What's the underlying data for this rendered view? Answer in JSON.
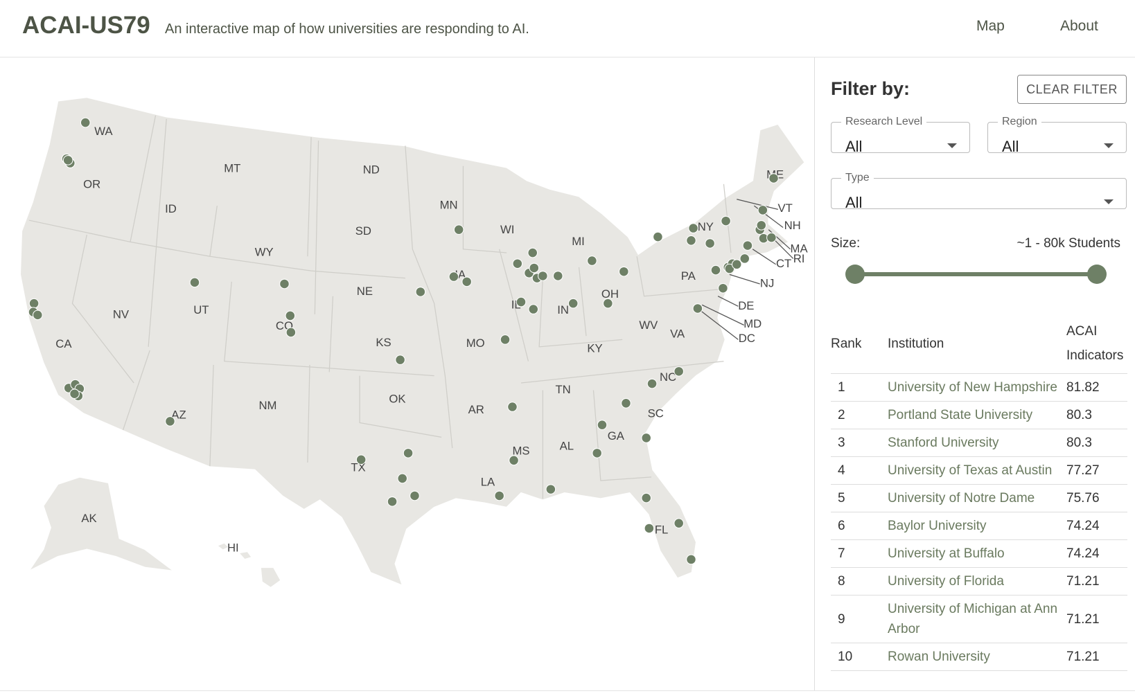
{
  "header": {
    "title": "ACAI-US79",
    "subtitle": "An interactive map of how universities are responding to AI.",
    "nav": [
      "Map",
      "About"
    ]
  },
  "map": {
    "state_labels": [
      "WA",
      "OR",
      "CA",
      "NV",
      "ID",
      "MT",
      "WY",
      "UT",
      "CO",
      "AZ",
      "NM",
      "ND",
      "SD",
      "NE",
      "KS",
      "OK",
      "TX",
      "MN",
      "IA",
      "MO",
      "AR",
      "LA",
      "WI",
      "IL",
      "MS",
      "MI",
      "IN",
      "KY",
      "TN",
      "AL",
      "OH",
      "GA",
      "FL",
      "SC",
      "NC",
      "VA",
      "WV",
      "PA",
      "NY",
      "ME",
      "VT",
      "NH",
      "MA",
      "RI",
      "CT",
      "NJ",
      "DE",
      "MD",
      "DC",
      "AK",
      "HI"
    ]
  },
  "filter": {
    "title": "Filter by:",
    "clear_button": "CLEAR FILTER",
    "selects": [
      {
        "label": "Research Level",
        "value": "All"
      },
      {
        "label": "Region",
        "value": "All"
      },
      {
        "label": "Type",
        "value": "All"
      }
    ],
    "size_label": "Size:",
    "size_range": "~1 - 80k Students"
  },
  "table": {
    "columns": [
      "Rank",
      "Institution",
      "ACAI Indicators"
    ],
    "rows": [
      [
        1,
        "University of New Hampshire",
        81.82
      ],
      [
        2,
        "Portland State University",
        80.3
      ],
      [
        3,
        "Stanford University",
        80.3
      ],
      [
        4,
        "University of Texas at Austin",
        77.27
      ],
      [
        5,
        "University of Notre Dame",
        75.76
      ],
      [
        6,
        "Baylor University",
        74.24
      ],
      [
        7,
        "University at Buffalo",
        74.24
      ],
      [
        8,
        "University of Florida",
        71.21
      ],
      [
        9,
        "University of Michigan at Ann Arbor",
        71.21
      ],
      [
        10,
        "Rowan University",
        71.21
      ]
    ]
  }
}
